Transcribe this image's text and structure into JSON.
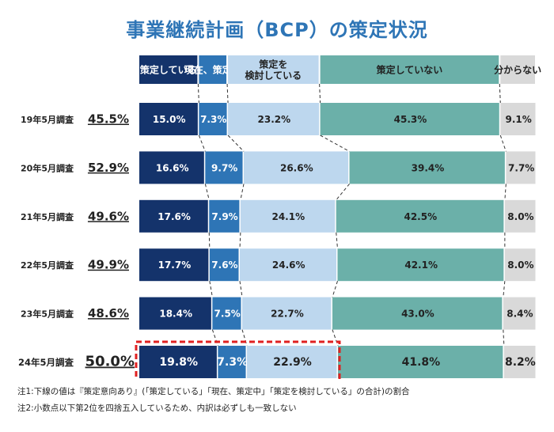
{
  "title": "事業継続計画（BCP）の策定状況",
  "chart_data": {
    "type": "bar",
    "stacked": "100%",
    "orientation": "horizontal",
    "title": "事業継続計画（BCP）の策定状況",
    "categories": [
      "19年5月調査",
      "20年5月調査",
      "21年5月調査",
      "22年5月調査",
      "23年5月調査",
      "24年5月調査"
    ],
    "totals": [
      "45.5%",
      "52.9%",
      "49.6%",
      "49.9%",
      "48.6%",
      "50.0%"
    ],
    "series": [
      {
        "name": "策定している",
        "color": "#14336b",
        "text_color": "#ffffff",
        "values": [
          15.0,
          16.6,
          17.6,
          17.7,
          18.4,
          19.8
        ]
      },
      {
        "name": "現在、策定中",
        "color": "#2e75b6",
        "text_color": "#ffffff",
        "values": [
          7.3,
          9.7,
          7.9,
          7.6,
          7.5,
          7.3
        ]
      },
      {
        "name": "策定を\n検討している",
        "color": "#bdd7ee",
        "text_color": "#222222",
        "values": [
          23.2,
          26.6,
          24.1,
          24.6,
          22.7,
          22.9
        ]
      },
      {
        "name": "策定していない",
        "color": "#6bb0a9",
        "text_color": "#222222",
        "values": [
          45.3,
          39.4,
          42.5,
          42.1,
          43.0,
          41.8
        ]
      },
      {
        "name": "分からない",
        "color": "#d9d9d9",
        "text_color": "#222222",
        "values": [
          9.1,
          7.7,
          8.0,
          8.0,
          8.4,
          8.2
        ]
      }
    ],
    "highlight": {
      "category": "24年5月調査",
      "series": [
        "策定している",
        "現在、策定中",
        "策定を\n検討している"
      ],
      "color": "#e02020"
    },
    "legend": "top"
  },
  "notes": [
    "注1:下線の値は『策定意向あり』(「策定している」「現在、策定中」「策定を検討している」の合計)の割合",
    "注2:小数点以下第2位を四捨五入しているため、内訳は必ずしも一致しない"
  ]
}
